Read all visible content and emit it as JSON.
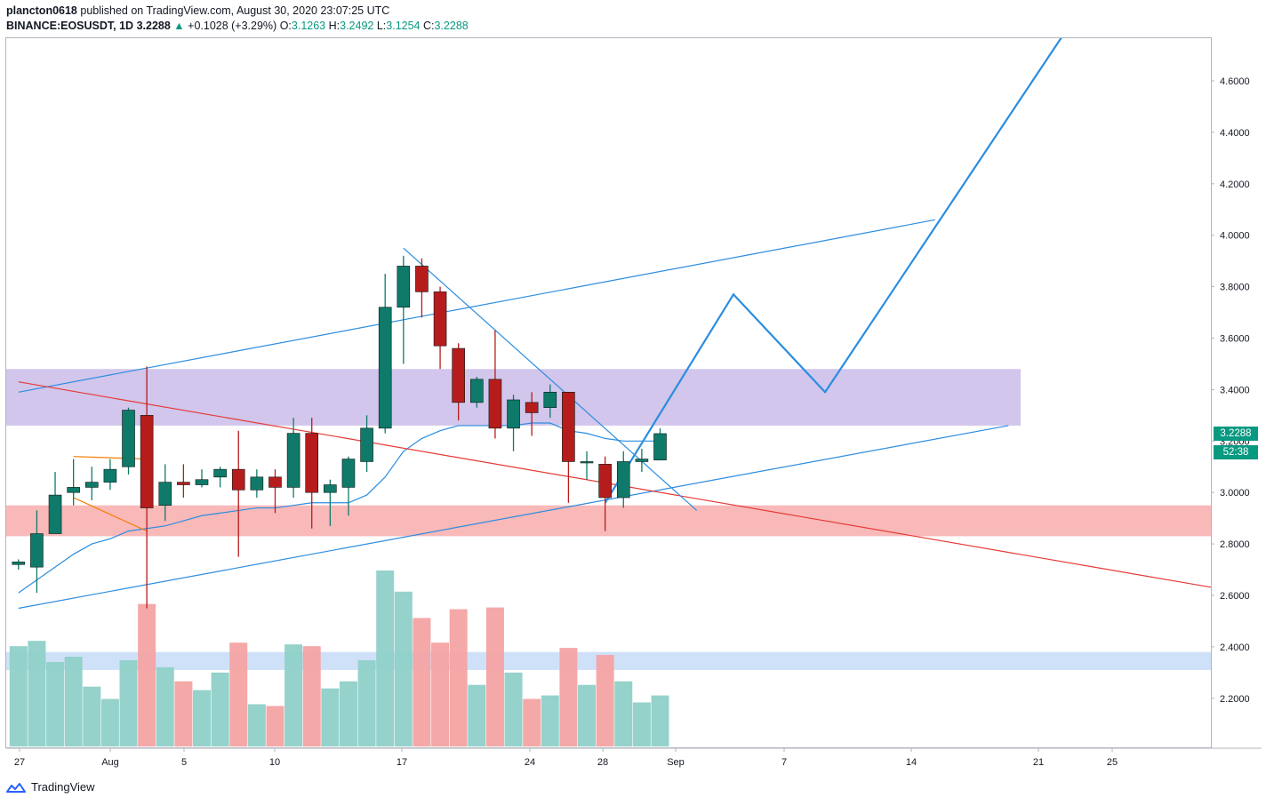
{
  "header": {
    "line1_user": "plancton0618",
    "line1_rest": " published on TradingView.com, August 30, 2020 23:07:25 UTC",
    "symbol": "BINANCE:EOSUSDT, 1D",
    "last": "3.2288",
    "change": "+0.1028 (+3.29%)",
    "o_label": "O:",
    "o": "3.1263",
    "h_label": "H:",
    "h": "3.2492",
    "l_label": "L:",
    "l": "3.1254",
    "c_label": "C:",
    "c": "3.2288"
  },
  "footer": {
    "brand": "TradingView"
  },
  "badges": {
    "price": "3.2288",
    "countdown": "52:38"
  },
  "colors": {
    "up": "#0f7a6a",
    "down": "#b71c1c",
    "vol_up": "#8fd0c8",
    "vol_down": "#f4a3a3",
    "line_blue": "#2b8de0",
    "line_red": "#e53935",
    "line_orange": "#f57c00",
    "zone_purple": "#d2c6ec",
    "zone_red": "#f9b9b9",
    "zone_blue": "#c7dcf7"
  },
  "chart_data": {
    "type": "candlestick",
    "symbol": "BINANCE:EOSUSDT",
    "interval": "1D",
    "y_range": [
      1.95,
      4.78
    ],
    "price_ticks": [
      "4.6000",
      "4.4000",
      "4.2000",
      "4.0000",
      "3.8000",
      "3.6000",
      "3.4000",
      "3.2000",
      "3.0000",
      "2.8000",
      "2.6000",
      "2.4000",
      "2.2000"
    ],
    "date_ticks": [
      "27",
      "Aug",
      "5",
      "10",
      "17",
      "24",
      "28",
      "Sep",
      "7",
      "14",
      "21",
      "25"
    ],
    "candles": [
      {
        "date": "2020-07-26",
        "o": 2.72,
        "h": 2.74,
        "l": 2.7,
        "c": 2.73
      },
      {
        "date": "2020-07-27",
        "o": 2.71,
        "h": 2.93,
        "l": 2.61,
        "c": 2.84
      },
      {
        "date": "2020-07-28",
        "o": 2.84,
        "h": 3.08,
        "l": 2.84,
        "c": 2.99
      },
      {
        "date": "2020-07-29",
        "o": 3.0,
        "h": 3.13,
        "l": 2.95,
        "c": 3.02
      },
      {
        "date": "2020-07-30",
        "o": 3.02,
        "h": 3.1,
        "l": 2.97,
        "c": 3.04
      },
      {
        "date": "2020-07-31",
        "o": 3.04,
        "h": 3.13,
        "l": 3.01,
        "c": 3.09
      },
      {
        "date": "2020-08-01",
        "o": 3.1,
        "h": 3.33,
        "l": 3.07,
        "c": 3.32
      },
      {
        "date": "2020-08-02",
        "o": 3.3,
        "h": 3.49,
        "l": 2.55,
        "c": 2.94
      },
      {
        "date": "2020-08-03",
        "o": 2.95,
        "h": 3.11,
        "l": 2.89,
        "c": 3.04
      },
      {
        "date": "2020-08-04",
        "o": 3.04,
        "h": 3.11,
        "l": 2.98,
        "c": 3.03
      },
      {
        "date": "2020-08-05",
        "o": 3.03,
        "h": 3.09,
        "l": 3.02,
        "c": 3.05
      },
      {
        "date": "2020-08-06",
        "o": 3.06,
        "h": 3.1,
        "l": 3.02,
        "c": 3.09
      },
      {
        "date": "2020-08-07",
        "o": 3.09,
        "h": 3.24,
        "l": 2.75,
        "c": 3.01
      },
      {
        "date": "2020-08-08",
        "o": 3.01,
        "h": 3.09,
        "l": 2.98,
        "c": 3.06
      },
      {
        "date": "2020-08-09",
        "o": 3.06,
        "h": 3.09,
        "l": 2.92,
        "c": 3.02
      },
      {
        "date": "2020-08-10",
        "o": 3.02,
        "h": 3.29,
        "l": 2.98,
        "c": 3.23
      },
      {
        "date": "2020-08-11",
        "o": 3.23,
        "h": 3.29,
        "l": 2.86,
        "c": 3.0
      },
      {
        "date": "2020-08-12",
        "o": 3.0,
        "h": 3.05,
        "l": 2.87,
        "c": 3.03
      },
      {
        "date": "2020-08-13",
        "o": 3.02,
        "h": 3.14,
        "l": 2.91,
        "c": 3.13
      },
      {
        "date": "2020-08-14",
        "o": 3.12,
        "h": 3.3,
        "l": 3.08,
        "c": 3.25
      },
      {
        "date": "2020-08-15",
        "o": 3.25,
        "h": 3.85,
        "l": 3.23,
        "c": 3.72
      },
      {
        "date": "2020-08-16",
        "o": 3.72,
        "h": 3.92,
        "l": 3.5,
        "c": 3.88
      },
      {
        "date": "2020-08-17",
        "o": 3.88,
        "h": 3.91,
        "l": 3.68,
        "c": 3.78
      },
      {
        "date": "2020-08-18",
        "o": 3.78,
        "h": 3.8,
        "l": 3.48,
        "c": 3.57
      },
      {
        "date": "2020-08-19",
        "o": 3.56,
        "h": 3.58,
        "l": 3.28,
        "c": 3.35
      },
      {
        "date": "2020-08-20",
        "o": 3.35,
        "h": 3.45,
        "l": 3.33,
        "c": 3.44
      },
      {
        "date": "2020-08-21",
        "o": 3.44,
        "h": 3.63,
        "l": 3.21,
        "c": 3.25
      },
      {
        "date": "2020-08-22",
        "o": 3.25,
        "h": 3.38,
        "l": 3.16,
        "c": 3.36
      },
      {
        "date": "2020-08-23",
        "o": 3.35,
        "h": 3.39,
        "l": 3.22,
        "c": 3.31
      },
      {
        "date": "2020-08-24",
        "o": 3.33,
        "h": 3.42,
        "l": 3.29,
        "c": 3.39
      },
      {
        "date": "2020-08-25",
        "o": 3.39,
        "h": 3.39,
        "l": 2.96,
        "c": 3.12
      },
      {
        "date": "2020-08-26",
        "o": 3.12,
        "h": 3.16,
        "l": 3.05,
        "c": 3.12
      },
      {
        "date": "2020-08-27",
        "o": 3.11,
        "h": 3.14,
        "l": 2.85,
        "c": 2.98
      },
      {
        "date": "2020-08-28",
        "o": 2.98,
        "h": 3.16,
        "l": 2.94,
        "c": 3.12
      },
      {
        "date": "2020-08-29",
        "o": 3.12,
        "h": 3.17,
        "l": 3.08,
        "c": 3.13
      },
      {
        "date": "2020-08-30",
        "o": 3.1263,
        "h": 3.2492,
        "l": 3.1254,
        "c": 3.2288
      }
    ],
    "volume_relative": [
      0.57,
      0.6,
      0.48,
      0.51,
      0.34,
      0.27,
      0.49,
      0.81,
      0.45,
      0.37,
      0.32,
      0.42,
      0.59,
      0.24,
      0.23,
      0.58,
      0.57,
      0.33,
      0.37,
      0.49,
      1.0,
      0.88,
      0.73,
      0.59,
      0.78,
      0.35,
      0.79,
      0.42,
      0.27,
      0.29,
      0.56,
      0.35,
      0.52,
      0.37,
      0.25,
      0.29
    ],
    "ma_line": [
      2.61,
      2.66,
      2.71,
      2.76,
      2.8,
      2.82,
      2.85,
      2.86,
      2.87,
      2.89,
      2.91,
      2.92,
      2.93,
      2.94,
      2.94,
      2.95,
      2.96,
      2.96,
      2.96,
      2.99,
      3.06,
      3.16,
      3.21,
      3.24,
      3.26,
      3.26,
      3.26,
      3.26,
      3.27,
      3.27,
      3.24,
      3.23,
      3.21,
      3.2,
      3.2,
      3.2
    ],
    "drawings": [
      {
        "kind": "trendline",
        "color": "blue",
        "from": [
          "2020-07-26",
          3.39
        ],
        "to": [
          "2020-09-14",
          4.06
        ]
      },
      {
        "kind": "trendline",
        "color": "blue",
        "from": [
          "2020-07-26",
          2.55
        ],
        "to": [
          "2020-09-18",
          3.26
        ]
      },
      {
        "kind": "trendline",
        "color": "red",
        "from": [
          "2020-07-26",
          3.43
        ],
        "to": [
          "2020-09-30",
          2.62
        ]
      },
      {
        "kind": "trendline",
        "color": "blue",
        "from": [
          "2020-08-16",
          3.95
        ],
        "to": [
          "2020-09-01",
          2.93
        ]
      },
      {
        "kind": "trendline",
        "color": "orange",
        "from": [
          "2020-07-29",
          3.14
        ],
        "to": [
          "2020-08-02",
          3.13
        ]
      },
      {
        "kind": "trendline",
        "color": "orange",
        "from": [
          "2020-07-29",
          2.98
        ],
        "to": [
          "2020-08-02",
          2.85
        ]
      },
      {
        "kind": "projection",
        "color": "blue",
        "points": [
          [
            "2020-08-27",
            2.96
          ],
          [
            "2020-09-03",
            3.77
          ],
          [
            "2020-09-08",
            3.39
          ],
          [
            "2020-09-21",
            4.78
          ]
        ]
      }
    ],
    "zones": [
      {
        "color": "purple",
        "top": 3.48,
        "bottom": 3.26
      },
      {
        "color": "red",
        "top": 2.95,
        "bottom": 2.83
      },
      {
        "color": "blue",
        "top": 2.38,
        "bottom": 2.31
      }
    ]
  }
}
